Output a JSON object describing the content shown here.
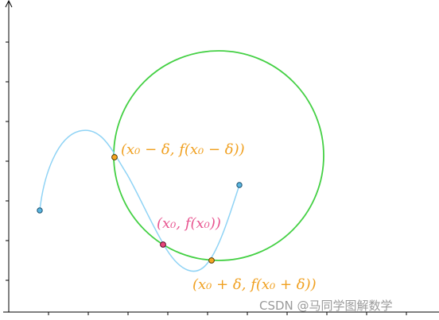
{
  "colors": {
    "axis": "#000000",
    "circle": "#44d044",
    "curve": "#8fd3f5",
    "endpoint_fill": "#5ab6e0",
    "endpoint_stroke": "#1a4f6e",
    "point_orange": "#f5a623",
    "point_pink": "#e8457a",
    "label_orange": "#f0a020",
    "label_pink": "#e85590",
    "watermark": "#9a9a9a"
  },
  "labels": {
    "left_point": "(x₀ − δ, f(x₀ − δ))",
    "center_point": "(x₀, f(x₀))",
    "right_point": "(x₀ + δ, f(x₀ + δ))"
  },
  "watermark": "CSDN @马同学图解数学",
  "icons": {
    "endpoint_left": "endpoint-marker",
    "endpoint_right": "endpoint-marker"
  }
}
